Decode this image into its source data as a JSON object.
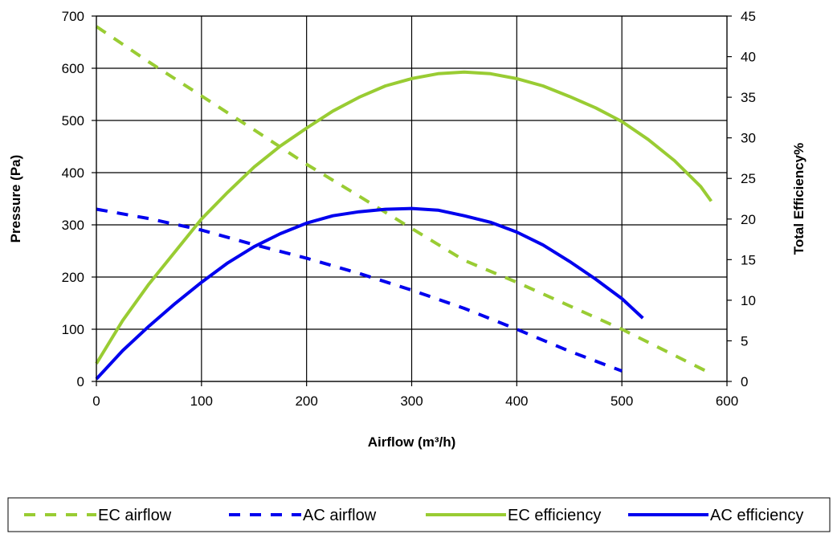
{
  "chart_data": {
    "type": "line",
    "xlabel": "Airflow (m³/h)",
    "ylabel": "Pressure (Pa)",
    "y2label": "Total Efficiency%",
    "xlim": [
      0,
      600
    ],
    "ylim": [
      0,
      700
    ],
    "y2lim": [
      0,
      45
    ],
    "xticks": [
      "0",
      "100",
      "200",
      "300",
      "400",
      "500",
      "600"
    ],
    "yticks": [
      "0",
      "100",
      "200",
      "300",
      "400",
      "500",
      "600",
      "700"
    ],
    "y2ticks": [
      "0",
      "5",
      "10",
      "15",
      "20",
      "25",
      "30",
      "35",
      "40",
      "45"
    ],
    "grid": true,
    "legend_position": "bottom",
    "series": [
      {
        "name": "EC airflow",
        "axis": "left",
        "style": "dashed",
        "color": "#99CC33",
        "x": [
          0,
          50,
          100,
          150,
          200,
          250,
          300,
          350,
          400,
          450,
          500,
          550,
          585
        ],
        "y": [
          680,
          612,
          547,
          482,
          416,
          355,
          293,
          232,
          190,
          145,
          100,
          50,
          15
        ]
      },
      {
        "name": "AC airflow",
        "axis": "left",
        "style": "dashed",
        "color": "#0000EE",
        "x": [
          0,
          50,
          100,
          150,
          200,
          250,
          300,
          350,
          400,
          450,
          500
        ],
        "y": [
          330,
          312,
          290,
          262,
          236,
          207,
          175,
          140,
          100,
          58,
          20
        ]
      },
      {
        "name": "EC efficiency",
        "axis": "right",
        "style": "solid",
        "color": "#99CC33",
        "x": [
          0,
          25,
          50,
          75,
          100,
          125,
          150,
          175,
          200,
          225,
          250,
          275,
          300,
          325,
          350,
          375,
          400,
          425,
          450,
          475,
          500,
          525,
          550,
          575,
          585
        ],
        "y": [
          2.2,
          7.5,
          12,
          16,
          20,
          23.3,
          26.4,
          29,
          31.2,
          33.3,
          35,
          36.4,
          37.3,
          37.9,
          38.1,
          37.9,
          37.3,
          36.4,
          35.1,
          33.7,
          32,
          29.8,
          27.2,
          24,
          22.2
        ]
      },
      {
        "name": "AC efficiency",
        "axis": "right",
        "style": "solid",
        "color": "#0000EE",
        "x": [
          0,
          25,
          50,
          75,
          100,
          125,
          150,
          175,
          200,
          225,
          250,
          275,
          300,
          325,
          350,
          375,
          400,
          425,
          450,
          475,
          500,
          520
        ],
        "y": [
          0.3,
          3.8,
          6.8,
          9.6,
          12.2,
          14.6,
          16.6,
          18.2,
          19.5,
          20.4,
          20.9,
          21.2,
          21.3,
          21.1,
          20.4,
          19.6,
          18.4,
          16.8,
          14.8,
          12.6,
          10.2,
          7.8
        ]
      }
    ]
  }
}
